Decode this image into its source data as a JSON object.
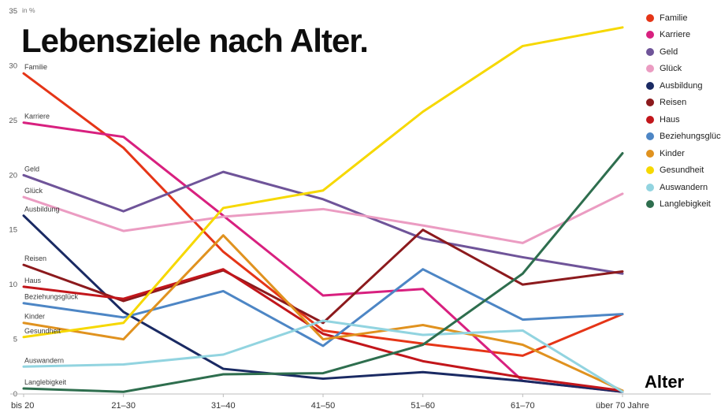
{
  "chart_data": {
    "type": "line",
    "title": "Lebensziele nach Alter.",
    "xlabel": "Alter",
    "ylabel": "in %",
    "ylim": [
      0,
      35
    ],
    "y_ticks": [
      0,
      5,
      10,
      15,
      20,
      25,
      30,
      35
    ],
    "grid": false,
    "legend_position": "top-right",
    "categories": [
      "bis 20",
      "21–30",
      "31–40",
      "41–50",
      "51–60",
      "61–70",
      "über 70 Jahre"
    ],
    "series": [
      {
        "name": "Familie",
        "color": "#e53517",
        "values": [
          29.3,
          22.5,
          13.0,
          5.8,
          4.6,
          3.5,
          7.3
        ]
      },
      {
        "name": "Karriere",
        "color": "#d8207f",
        "values": [
          24.8,
          23.5,
          16.3,
          9.0,
          9.6,
          1.2,
          0.2
        ]
      },
      {
        "name": "Geld",
        "color": "#6f5499",
        "values": [
          20.0,
          16.7,
          20.3,
          17.8,
          14.2,
          12.5,
          11.0
        ]
      },
      {
        "name": "Glück",
        "color": "#eb9cc2",
        "values": [
          18.0,
          14.9,
          16.2,
          16.9,
          15.4,
          13.8,
          18.3
        ]
      },
      {
        "name": "Ausbildung",
        "color": "#1a2a63",
        "values": [
          16.3,
          7.5,
          2.3,
          1.4,
          2.0,
          1.2,
          0.2
        ]
      },
      {
        "name": "Reisen",
        "color": "#8c1a1d",
        "values": [
          11.8,
          8.5,
          11.3,
          6.5,
          15.0,
          10.0,
          11.2
        ]
      },
      {
        "name": "Haus",
        "color": "#c2161b",
        "values": [
          9.8,
          8.7,
          11.4,
          5.5,
          3.0,
          1.5,
          0.3
        ]
      },
      {
        "name": "Beziehungsglück",
        "color": "#4d86c5",
        "values": [
          8.3,
          7.0,
          9.4,
          4.4,
          11.4,
          6.8,
          7.3
        ]
      },
      {
        "name": "Kinder",
        "color": "#e0921f",
        "values": [
          6.5,
          5.0,
          14.5,
          5.0,
          6.3,
          4.5,
          0.3
        ]
      },
      {
        "name": "Gesundheit",
        "color": "#f6d800",
        "values": [
          5.2,
          6.5,
          17.0,
          18.6,
          25.8,
          31.8,
          33.5
        ]
      },
      {
        "name": "Auswandern",
        "color": "#92d4e0",
        "values": [
          2.5,
          2.7,
          3.6,
          6.7,
          5.4,
          5.8,
          0.2
        ]
      },
      {
        "name": "Langlebigkeit",
        "color": "#2e6e4e",
        "values": [
          0.5,
          0.2,
          1.8,
          1.9,
          4.5,
          11.0,
          22.0
        ]
      }
    ]
  }
}
